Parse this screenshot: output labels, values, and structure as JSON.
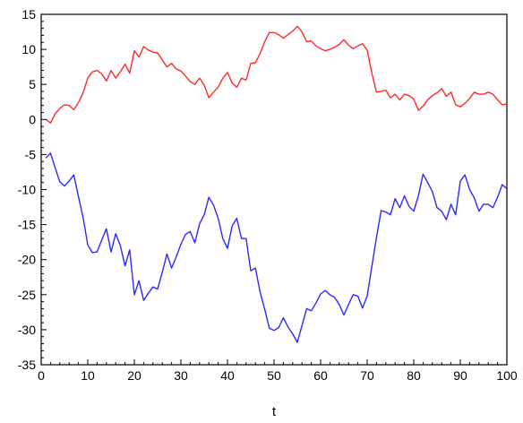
{
  "chart_data": {
    "type": "line",
    "title": "",
    "xlabel": "t",
    "ylabel": "",
    "xlim": [
      0,
      100
    ],
    "ylim": [
      -35,
      15
    ],
    "xticks": [
      0,
      10,
      20,
      30,
      40,
      50,
      60,
      70,
      80,
      90,
      100
    ],
    "yticks": [
      15,
      10,
      5,
      0,
      -5,
      -10,
      -15,
      -20,
      -25,
      -30,
      -35
    ],
    "grid": false,
    "legend": "none",
    "series": [
      {
        "color": "#ff2a2a",
        "x": [
          1,
          2,
          3,
          4,
          5,
          6,
          7,
          8,
          9,
          10,
          11,
          12,
          13,
          14,
          15,
          16,
          17,
          18,
          19,
          20,
          21,
          22,
          23,
          24,
          25,
          26,
          27,
          28,
          29,
          30,
          31,
          32,
          33,
          34,
          35,
          36,
          37,
          38,
          39,
          40,
          41,
          42,
          43,
          44,
          45,
          46,
          47,
          48,
          49,
          50,
          51,
          52,
          53,
          54,
          55,
          56,
          57,
          58,
          59,
          60,
          61,
          62,
          63,
          64,
          65,
          66,
          67,
          68,
          69,
          70,
          71,
          72,
          73,
          74,
          75,
          76,
          77,
          78,
          79,
          80,
          81,
          82,
          83,
          84,
          85,
          86,
          87,
          88,
          89,
          90,
          91,
          92,
          93,
          94,
          95,
          96,
          97,
          98,
          99,
          100
        ],
        "values": [
          0,
          -0.5,
          0.8,
          1.6,
          2.1,
          2,
          1.4,
          2.4,
          3.8,
          5.9,
          6.8,
          7,
          6.5,
          5.5,
          7,
          5.9,
          6.8,
          7.9,
          6.6,
          9.8,
          8.9,
          10.4,
          9.9,
          9.6,
          9.5,
          8.5,
          7.5,
          8,
          7.2,
          6.9,
          6.2,
          5.4,
          5,
          5.9,
          4.9,
          3.1,
          3.9,
          4.6,
          5.9,
          6.7,
          5.2,
          4.6,
          5.9,
          5.6,
          8,
          8.1,
          9.4,
          11.1,
          12.4,
          12.4,
          12.1,
          11.6,
          12.1,
          12.6,
          13.3,
          12.5,
          11.1,
          11.2,
          10.5,
          10.1,
          9.8,
          10,
          10.3,
          10.7,
          11.4,
          10.6,
          10.1,
          10.5,
          10.8,
          9.9,
          6.6,
          3.9,
          4,
          4.2,
          3.1,
          3.6,
          2.8,
          3.6,
          3.4,
          2.9,
          1.3,
          1.9,
          2.8,
          3.4,
          3.8,
          4.4,
          3.3,
          3.9,
          2.1,
          1.8,
          2.3,
          3,
          3.9,
          3.6,
          3.6,
          3.9,
          3.6,
          2.8,
          2.1,
          2.2
        ]
      },
      {
        "color": "#2a2aff",
        "x": [
          1,
          2,
          3,
          4,
          5,
          6,
          7,
          8,
          9,
          10,
          11,
          12,
          13,
          14,
          15,
          16,
          17,
          18,
          19,
          20,
          21,
          22,
          23,
          24,
          25,
          26,
          27,
          28,
          29,
          30,
          31,
          32,
          33,
          34,
          35,
          36,
          37,
          38,
          39,
          40,
          41,
          42,
          43,
          44,
          45,
          46,
          47,
          48,
          49,
          50,
          51,
          52,
          53,
          54,
          55,
          56,
          57,
          58,
          59,
          60,
          61,
          62,
          63,
          64,
          65,
          66,
          67,
          68,
          69,
          70,
          71,
          72,
          73,
          74,
          75,
          76,
          77,
          78,
          79,
          80,
          81,
          82,
          83,
          84,
          85,
          86,
          87,
          88,
          89,
          90,
          91,
          92,
          93,
          94,
          95,
          96,
          97,
          98,
          99,
          100
        ],
        "values": [
          -5.5,
          -4.8,
          -6.9,
          -8.9,
          -9.5,
          -8.8,
          -7.9,
          -11,
          -14,
          -17.9,
          -19,
          -18.9,
          -17.2,
          -15.6,
          -18.9,
          -16.3,
          -18,
          -20.9,
          -18.6,
          -25,
          -23,
          -25.8,
          -24.8,
          -23.9,
          -24.2,
          -21.8,
          -19.2,
          -21.2,
          -19.6,
          -17.8,
          -16.4,
          -16,
          -17.6,
          -14.9,
          -13.6,
          -11.1,
          -12.2,
          -14.1,
          -17,
          -18.4,
          -15.2,
          -14.1,
          -17,
          -17,
          -21.6,
          -21.2,
          -24.6,
          -27.1,
          -29.8,
          -30.1,
          -29.7,
          -28.3,
          -29.6,
          -30.6,
          -31.8,
          -29.4,
          -27,
          -27.3,
          -26.2,
          -24.9,
          -24.4,
          -25,
          -25.4,
          -26.4,
          -27.9,
          -26.4,
          -25,
          -25.2,
          -26.9,
          -25.2,
          -21,
          -16.8,
          -13,
          -13.2,
          -13.6,
          -11.3,
          -12.6,
          -10.9,
          -12.4,
          -13.1,
          -10.9,
          -7.8,
          -9,
          -10.3,
          -12.6,
          -13.1,
          -14.3,
          -12.1,
          -13.6,
          -8.8,
          -7.9,
          -10,
          -11.2,
          -13.1,
          -12.1,
          -12.1,
          -12.6,
          -11.1,
          -9.3,
          -9.9
        ]
      }
    ]
  }
}
